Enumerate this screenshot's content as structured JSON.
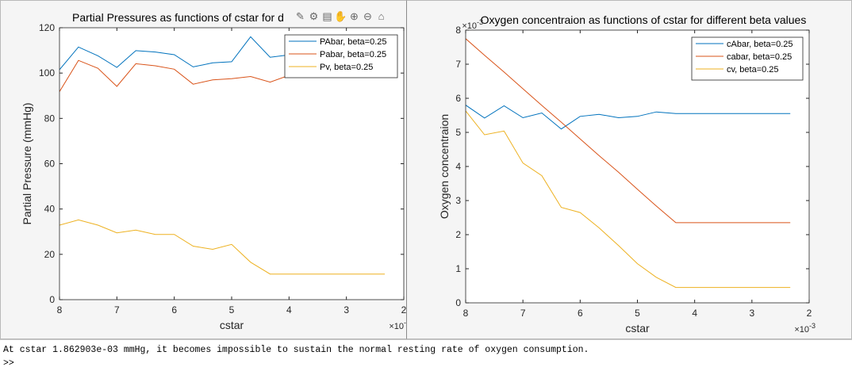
{
  "figures": [
    {
      "id": "left",
      "toolbar": {
        "icons": [
          "brush-icon",
          "edit-icon",
          "save-icon",
          "pan-icon",
          "zoom-in-icon",
          "zoom-out-icon",
          "home-icon"
        ]
      },
      "chart_data": {
        "type": "line",
        "title": "Partial Pressures as functions of cstar for d",
        "xlabel": "cstar",
        "ylabel": "Partial Pressure (mmHg)",
        "x_multiplier": "×10^{-3}",
        "x_reversed": true,
        "xlim": [
          0.002,
          0.008
        ],
        "ylim": [
          0,
          120
        ],
        "xticks": [
          "8",
          "7",
          "6",
          "5",
          "4",
          "3",
          "2"
        ],
        "yticks": [
          "0",
          "20",
          "40",
          "60",
          "80",
          "100",
          "120"
        ],
        "grid": false,
        "legend_position": "top-right",
        "x": [
          0.008,
          0.00767,
          0.00733,
          0.007,
          0.00667,
          0.00633,
          0.006,
          0.00567,
          0.00533,
          0.005,
          0.00467,
          0.00433,
          0.004,
          0.00367,
          0.00333,
          0.003,
          0.00267,
          0.00233
        ],
        "series": [
          {
            "name": "PAbar, beta=0.25",
            "color": "#0072BD",
            "values": [
              101.5,
              111.5,
              107.6,
              102.5,
              109.9,
              109.3,
              108.1,
              102.7,
              104.5,
              105,
              116,
              107,
              108,
              108,
              108,
              108,
              108,
              108
            ]
          },
          {
            "name": "Pabar, beta=0.25",
            "color": "#D95319",
            "values": [
              91.8,
              105.6,
              102.1,
              94.1,
              104.1,
              103.2,
              101.7,
              95.1,
              97,
              97.5,
              98.5,
              96,
              99,
              99,
              99,
              99,
              99,
              99
            ]
          },
          {
            "name": "Pv, beta=0.25",
            "color": "#EDB120",
            "values": [
              32.9,
              35.2,
              32.9,
              29.5,
              30.7,
              28.8,
              28.8,
              23.6,
              22.2,
              24.4,
              16.5,
              11.3,
              11.3,
              11.3,
              11.3,
              11.3,
              11.3,
              11.3
            ]
          }
        ]
      }
    },
    {
      "id": "right",
      "chart_data": {
        "type": "line",
        "title": "Oxygen concentraion as functions of cstar for different beta values",
        "xlabel": "cstar",
        "ylabel": "Oxygen concentraion",
        "x_multiplier": "×10^{-3}",
        "y_multiplier": "×10^{-3}",
        "x_reversed": true,
        "xlim": [
          0.002,
          0.008
        ],
        "ylim": [
          0,
          0.008
        ],
        "xticks": [
          "8",
          "7",
          "6",
          "5",
          "4",
          "3",
          "2"
        ],
        "yticks": [
          "0",
          "1",
          "2",
          "3",
          "4",
          "5",
          "6",
          "7",
          "8"
        ],
        "grid": false,
        "legend_position": "top-right",
        "x": [
          0.008,
          0.00767,
          0.00733,
          0.007,
          0.00667,
          0.00633,
          0.006,
          0.00567,
          0.00533,
          0.005,
          0.00467,
          0.00433,
          0.004,
          0.00367,
          0.00333,
          0.003,
          0.00267,
          0.00233
        ],
        "series": [
          {
            "name": "cAbar, beta=0.25",
            "color": "#0072BD",
            "values": [
              0.0058,
              0.00542,
              0.00578,
              0.00543,
              0.00557,
              0.0051,
              0.00547,
              0.00553,
              0.00543,
              0.00547,
              0.0056,
              0.00555,
              0.00555,
              0.00555,
              0.00555,
              0.00555,
              0.00555,
              0.00555
            ]
          },
          {
            "name": "cabar, beta=0.25",
            "color": "#D95319",
            "values": [
              0.00775,
              0.00726,
              0.00677,
              0.00628,
              0.00579,
              0.0053,
              0.00481,
              0.00432,
              0.00383,
              0.00333,
              0.00284,
              0.00235,
              0.00235,
              0.00235,
              0.00235,
              0.00235,
              0.00235,
              0.00235
            ]
          },
          {
            "name": "cv, beta=0.25",
            "color": "#EDB120",
            "values": [
              0.00563,
              0.00493,
              0.00504,
              0.0041,
              0.00373,
              0.0028,
              0.00265,
              0.0022,
              0.00168,
              0.00115,
              0.00075,
              0.00045,
              0.00045,
              0.00045,
              0.00045,
              0.00045,
              0.00045,
              0.00045
            ]
          }
        ]
      }
    }
  ],
  "console": {
    "line1": "At cstar 1.862903e-03 mmHg, it becomes impossible to sustain the normal resting rate of oxygen consumption.",
    "prompt": ">>"
  }
}
